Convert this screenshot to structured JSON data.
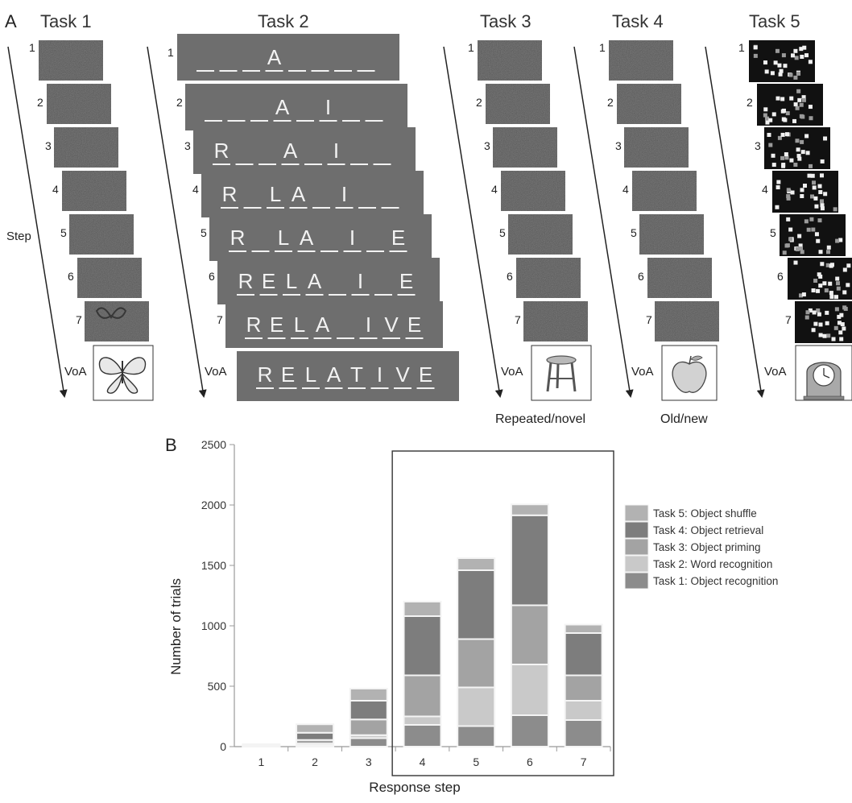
{
  "panel_a": {
    "label": "A",
    "step_label": "Step",
    "voa_label": "VoA",
    "step_numbers": [
      "1",
      "2",
      "3",
      "4",
      "5",
      "6",
      "7"
    ],
    "tasks": [
      {
        "title": "Task 1",
        "caption": ""
      },
      {
        "title": "Task 2",
        "caption": "",
        "word_steps": [
          "A",
          "A I",
          "R A I",
          "R LA I",
          "R LA I E",
          "RELA I E",
          "RELA IVE",
          "RELATIVE"
        ]
      },
      {
        "title": "Task 3",
        "caption": "Repeated/novel"
      },
      {
        "title": "Task 4",
        "caption": "Old/new"
      },
      {
        "title": "Task 5",
        "caption": ""
      }
    ],
    "colors": {
      "noise_dark": "#1e1e1e",
      "word_frame": "#6e6e6e",
      "word_text": "#f2f2f2"
    }
  },
  "chart_data": {
    "type": "bar",
    "panel_label": "B",
    "stacked": true,
    "categories": [
      "1",
      "2",
      "3",
      "4",
      "5",
      "6",
      "7"
    ],
    "xlabel": "Response step",
    "ylabel": "Number of trials",
    "ylim": [
      0,
      2500
    ],
    "yticks": [
      "0",
      "500",
      "1000",
      "1500",
      "2000",
      "2500"
    ],
    "grid": false,
    "legend_position": "right",
    "series": [
      {
        "name": "Task 1: Object recognition",
        "color": "#8c8c8c",
        "values": [
          2,
          10,
          70,
          180,
          170,
          260,
          220
        ]
      },
      {
        "name": "Task 2: Word recognition",
        "color": "#c9c9c9",
        "values": [
          3,
          15,
          25,
          70,
          320,
          420,
          160
        ]
      },
      {
        "name": "Task 3: Object priming",
        "color": "#a3a3a3",
        "values": [
          4,
          30,
          130,
          340,
          400,
          490,
          210
        ]
      },
      {
        "name": "Task 4: Object retrieval",
        "color": "#7d7d7d",
        "values": [
          6,
          60,
          155,
          490,
          570,
          745,
          350
        ]
      },
      {
        "name": "Task 5: Object shuffle",
        "color": "#b2b2b2",
        "values": [
          5,
          70,
          100,
          120,
          100,
          90,
          70
        ]
      }
    ],
    "highlight_box_categories": [
      "4",
      "5",
      "6",
      "7"
    ]
  }
}
